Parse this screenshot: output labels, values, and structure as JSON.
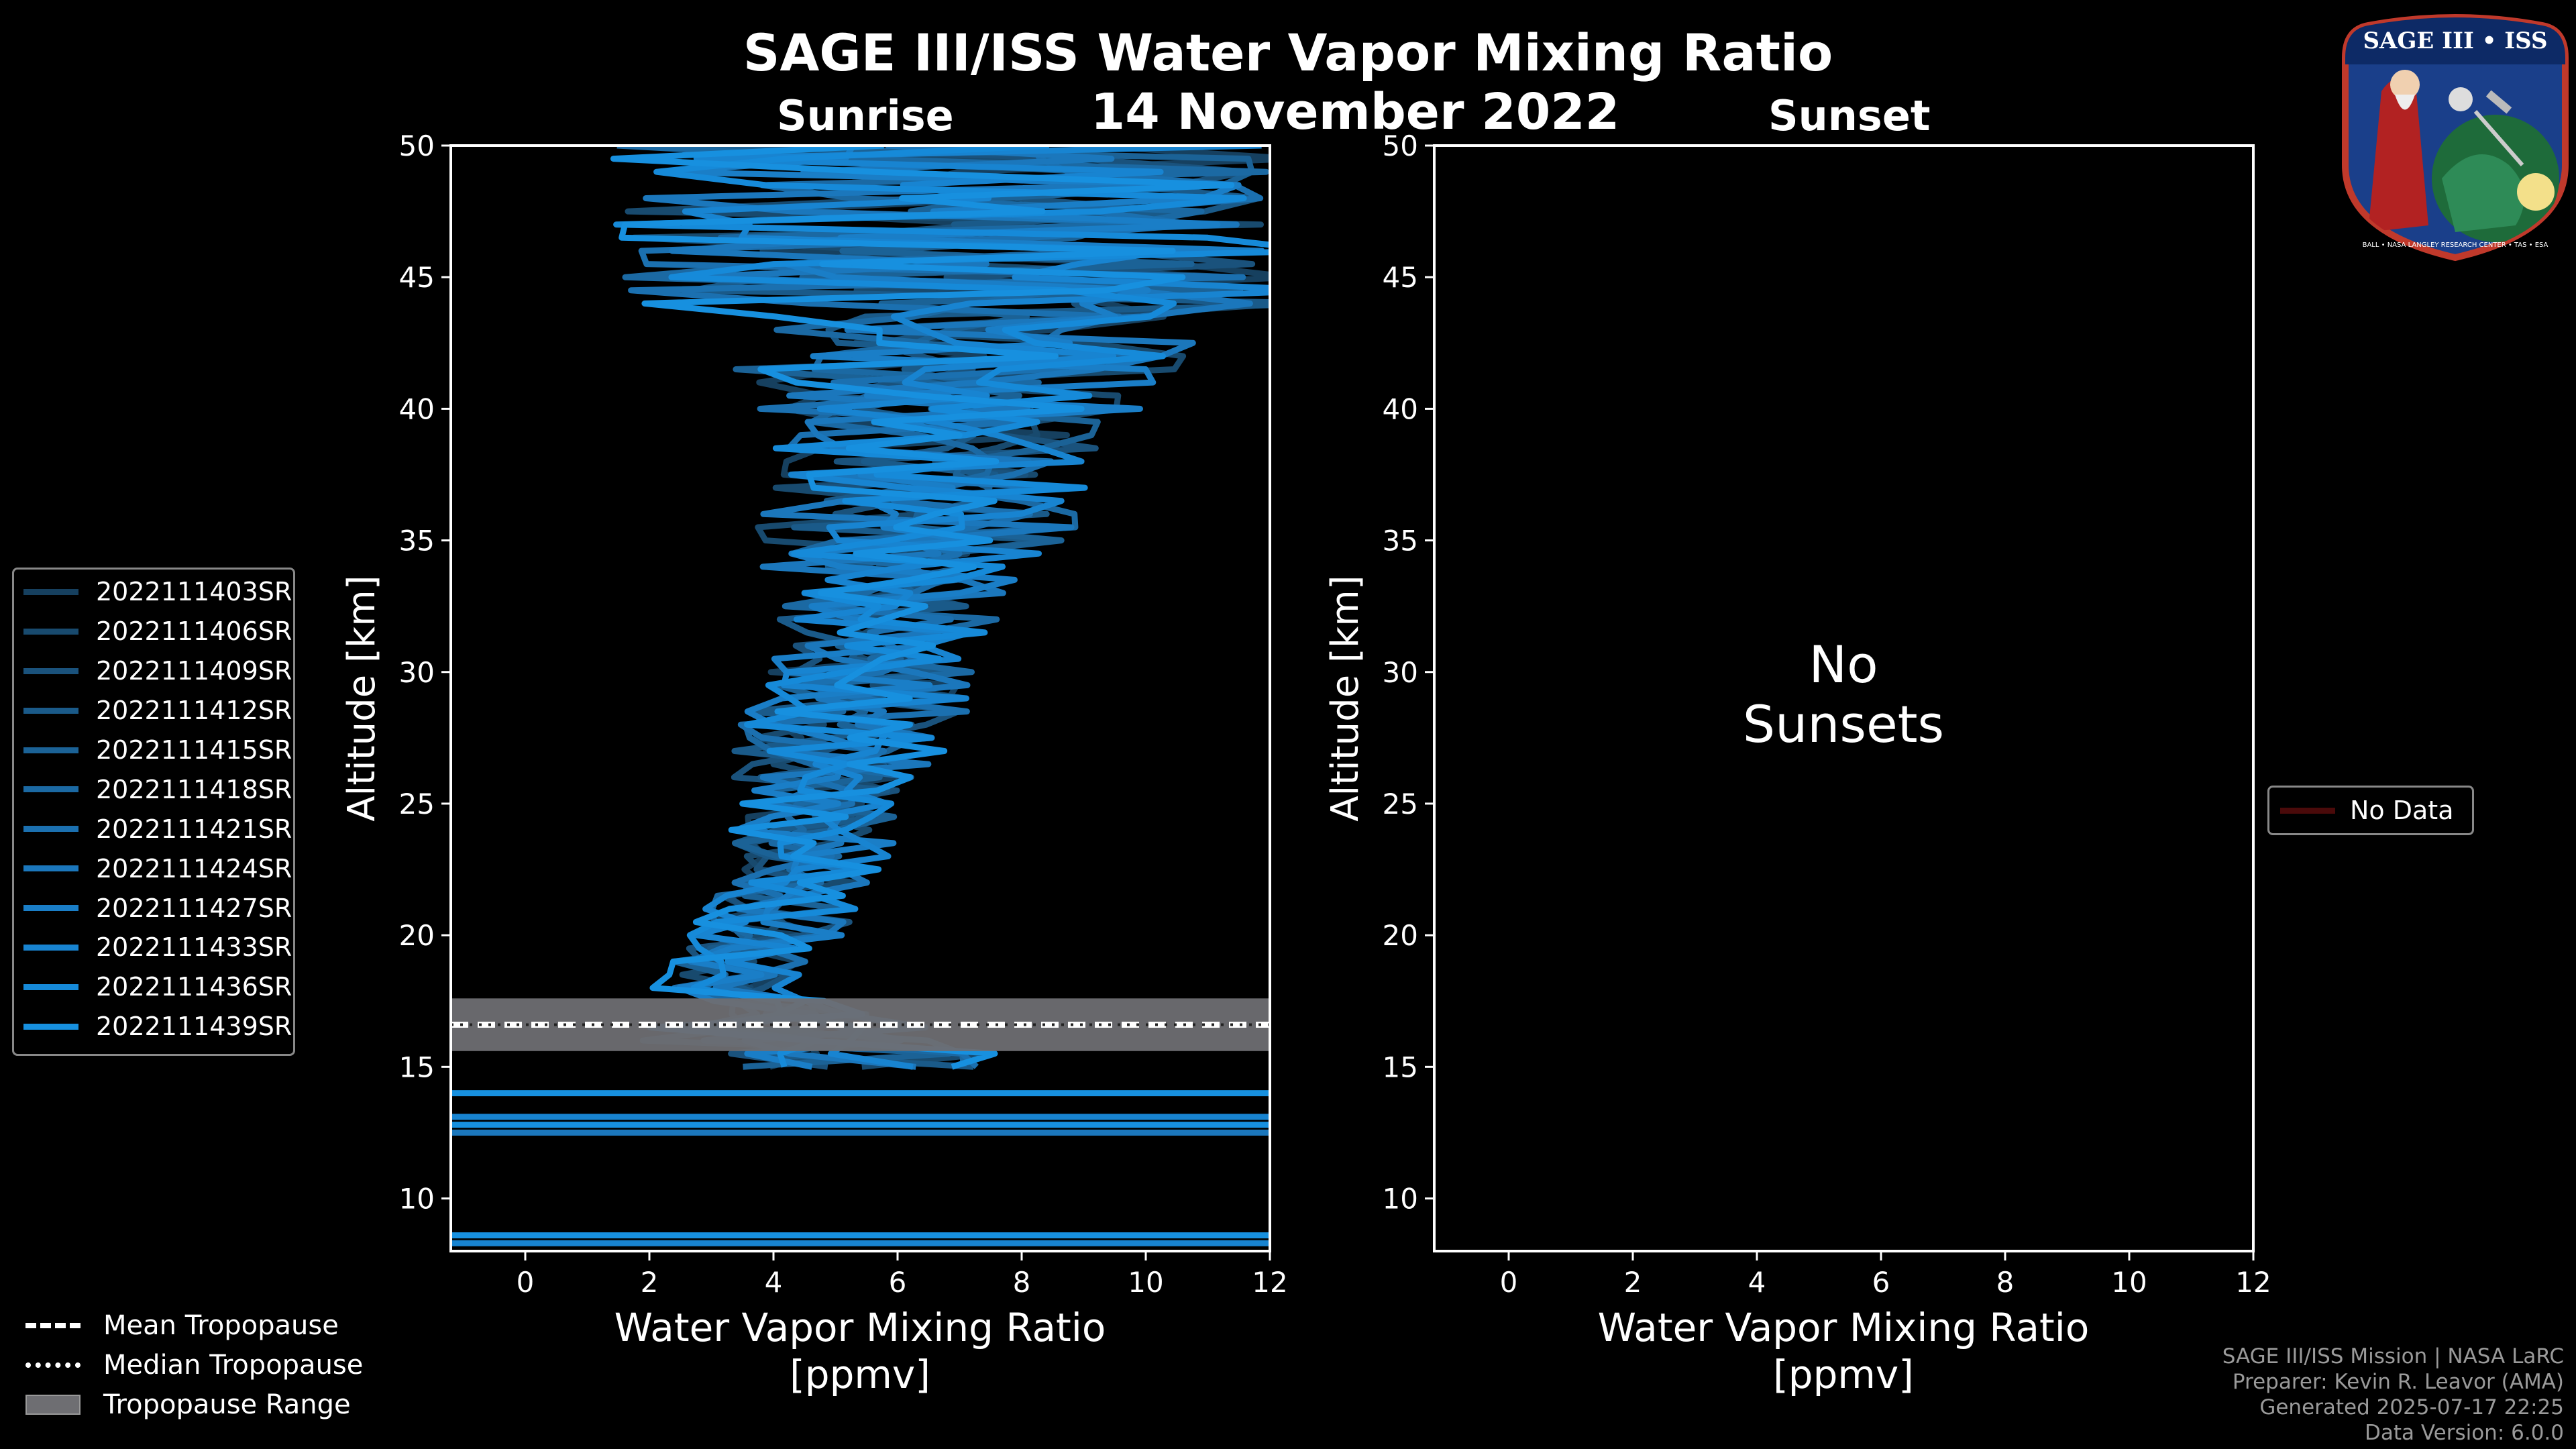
{
  "header": {
    "title": "SAGE III/ISS Water Vapor Mixing Ratio",
    "date": "14 November 2022",
    "left_subtitle": "Sunrise",
    "right_subtitle": "Sunset"
  },
  "chart_data": [
    {
      "type": "line",
      "panel": "sunrise",
      "xlabel": "Water Vapor Mixing Ratio\n[ppmv]",
      "ylabel": "Altitude [km]",
      "xlim": [
        -1.2,
        12
      ],
      "ylim": [
        8,
        50
      ],
      "xticks": [
        0,
        2,
        4,
        6,
        8,
        10,
        12
      ],
      "yticks": [
        10,
        15,
        20,
        25,
        30,
        35,
        40,
        45,
        50
      ],
      "tropopause": {
        "mean": 16.6,
        "median": 16.6,
        "range": [
          15.6,
          17.6
        ]
      },
      "series": [
        {
          "name": "2022111403SR",
          "color": "#16405f"
        },
        {
          "name": "2022111406SR",
          "color": "#184a6e"
        },
        {
          "name": "2022111409SR",
          "color": "#1a527c"
        },
        {
          "name": "2022111412SR",
          "color": "#1a5a89"
        },
        {
          "name": "2022111415SR",
          "color": "#1b6296"
        },
        {
          "name": "2022111418SR",
          "color": "#1b69a3"
        },
        {
          "name": "2022111421SR",
          "color": "#1b70b0"
        },
        {
          "name": "2022111424SR",
          "color": "#1b77bc"
        },
        {
          "name": "2022111427SR",
          "color": "#1a7ec7"
        },
        {
          "name": "2022111433SR",
          "color": "#1884d1"
        },
        {
          "name": "2022111436SR",
          "color": "#168ad9"
        },
        {
          "name": "2022111439SR",
          "color": "#1790df"
        }
      ]
    },
    {
      "type": "line",
      "panel": "sunset",
      "xlabel": "Water Vapor Mixing Ratio\n[ppmv]",
      "ylabel": "Altitude [km]",
      "xlim": [
        -1.2,
        12
      ],
      "ylim": [
        8,
        50
      ],
      "xticks": [
        0,
        2,
        4,
        6,
        8,
        10,
        12
      ],
      "yticks": [
        10,
        15,
        20,
        25,
        30,
        35,
        40,
        45,
        50
      ],
      "annotation": "No\nSunsets",
      "series": [
        {
          "name": "No Data",
          "color": "#4a0a0a",
          "values": []
        }
      ]
    }
  ],
  "bottom_legend": {
    "mean": "Mean Tropopause",
    "median": "Median Tropopause",
    "range": "Tropopause Range"
  },
  "credits": {
    "line1": "SAGE III/ISS Mission | NASA LaRC",
    "line2": "Preparer: Kevin R. Leavor (AMA)",
    "line3": "Generated 2025-07-17 22:25",
    "line4": "Data Version: 6.0.0"
  },
  "logo": {
    "top": "SAGE III • ISS",
    "bottom": "BALL • NASA LANGLEY RESEARCH CENTER • TAS • ESA"
  },
  "colors": {
    "background": "#000000",
    "axes": "#ffffff",
    "tropo_band": "#6e6e72"
  }
}
